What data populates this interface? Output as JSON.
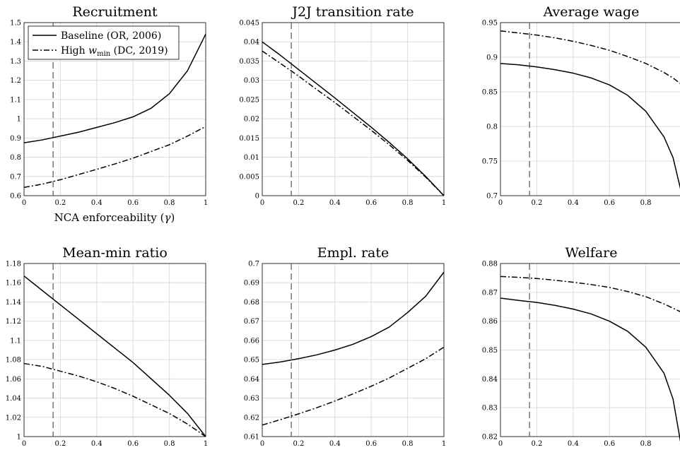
{
  "legend": {
    "baseline": "Baseline (OR, 2006)",
    "high_prefix": "High ",
    "high_w": "w",
    "high_sub": "min",
    "high_suffix": " (DC, 2019)"
  },
  "xlabel_text": "NCA enforceability (",
  "xlabel_symbol": "γ",
  "xlabel_close": ")",
  "colors": {
    "line": "#000000",
    "grid": "#dcdcdc",
    "reference": "#555555"
  },
  "chart_data": [
    {
      "type": "line",
      "title": "Recruitment",
      "xlim": [
        0,
        1
      ],
      "ylim": [
        0.6,
        1.5
      ],
      "xticks": [
        "0",
        "0.2",
        "0.4",
        "0.6",
        "0.8",
        "1"
      ],
      "yticks": [
        "0.6",
        "0.7",
        "0.8",
        "0.9",
        "1",
        "1.1",
        "1.2",
        "1.3",
        "1.4",
        "1.5"
      ],
      "reference_x": 0.16,
      "x": [
        0,
        0.1,
        0.2,
        0.3,
        0.4,
        0.5,
        0.6,
        0.7,
        0.8,
        0.9,
        1
      ],
      "series": [
        {
          "name": "Baseline (OR, 2006)",
          "style": "solid",
          "values": [
            0.875,
            0.89,
            0.91,
            0.93,
            0.955,
            0.98,
            1.01,
            1.055,
            1.13,
            1.25,
            1.44
          ]
        },
        {
          "name": "High w_min (DC, 2019)",
          "style": "dashdot",
          "values": [
            0.643,
            0.66,
            0.683,
            0.71,
            0.737,
            0.765,
            0.795,
            0.83,
            0.865,
            0.91,
            0.96
          ]
        }
      ]
    },
    {
      "type": "line",
      "title": "J2J transition rate",
      "xlim": [
        0,
        1
      ],
      "ylim": [
        0,
        0.045
      ],
      "xticks": [
        "0",
        "0.2",
        "0.4",
        "0.6",
        "0.8",
        "1"
      ],
      "yticks": [
        "0",
        "0.005",
        "0.01",
        "0.015",
        "0.02",
        "0.025",
        "0.03",
        "0.035",
        "0.04",
        "0.045"
      ],
      "reference_x": 0.16,
      "x": [
        0,
        0.1,
        0.2,
        0.3,
        0.4,
        0.5,
        0.6,
        0.7,
        0.8,
        0.9,
        1
      ],
      "series": [
        {
          "name": "Baseline (OR, 2006)",
          "style": "solid",
          "values": [
            0.04,
            0.0365,
            0.0328,
            0.0291,
            0.0254,
            0.0216,
            0.0178,
            0.0138,
            0.0096,
            0.005,
            0.0
          ]
        },
        {
          "name": "High w_min (DC, 2019)",
          "style": "dashdot",
          "values": [
            0.0376,
            0.0344,
            0.0311,
            0.0276,
            0.0242,
            0.0206,
            0.017,
            0.0132,
            0.0092,
            0.0048,
            0.0
          ]
        }
      ]
    },
    {
      "type": "line",
      "title": "Average wage",
      "xlim": [
        0,
        1
      ],
      "ylim": [
        0.7,
        0.95
      ],
      "xticks": [
        "0",
        "0.2",
        "0.4",
        "0.6",
        "0.8"
      ],
      "yticks": [
        "0.7",
        "0.75",
        "0.8",
        "0.85",
        "0.9",
        "0.95"
      ],
      "reference_x": 0.16,
      "x": [
        0,
        0.1,
        0.2,
        0.3,
        0.4,
        0.5,
        0.6,
        0.7,
        0.8,
        0.9,
        0.95,
        1
      ],
      "series": [
        {
          "name": "Baseline (OR, 2006)",
          "style": "solid",
          "values": [
            0.891,
            0.889,
            0.886,
            0.882,
            0.877,
            0.87,
            0.86,
            0.845,
            0.822,
            0.785,
            0.755,
            0.7
          ]
        },
        {
          "name": "High w_min (DC, 2019)",
          "style": "dashdot",
          "values": [
            0.938,
            0.935,
            0.932,
            0.928,
            0.923,
            0.917,
            0.91,
            0.901,
            0.891,
            0.878,
            0.87,
            0.86
          ]
        }
      ]
    },
    {
      "type": "line",
      "title": "Mean-min ratio",
      "xlim": [
        0,
        1
      ],
      "ylim": [
        1,
        1.18
      ],
      "xticks": [
        "0",
        "0.2",
        "0.4",
        "0.6",
        "0.8",
        "1"
      ],
      "yticks": [
        "1",
        "1.02",
        "1.04",
        "1.06",
        "1.08",
        "1.1",
        "1.12",
        "1.14",
        "1.16",
        "1.18"
      ],
      "reference_x": 0.16,
      "x": [
        0,
        0.1,
        0.2,
        0.3,
        0.4,
        0.5,
        0.6,
        0.7,
        0.8,
        0.9,
        1
      ],
      "series": [
        {
          "name": "Baseline (OR, 2006)",
          "style": "solid",
          "values": [
            1.167,
            1.152,
            1.137,
            1.122,
            1.107,
            1.092,
            1.077,
            1.06,
            1.043,
            1.024,
            1.0
          ]
        },
        {
          "name": "High w_min (DC, 2019)",
          "style": "dashdot",
          "values": [
            1.076,
            1.073,
            1.068,
            1.063,
            1.057,
            1.05,
            1.042,
            1.033,
            1.024,
            1.013,
            1.0
          ]
        }
      ]
    },
    {
      "type": "line",
      "title": "Empl. rate",
      "xlim": [
        0,
        1
      ],
      "ylim": [
        0.61,
        0.7
      ],
      "xticks": [
        "0",
        "0.2",
        "0.4",
        "0.6",
        "0.8",
        "1"
      ],
      "yticks": [
        "0.61",
        "0.62",
        "0.63",
        "0.64",
        "0.65",
        "0.66",
        "0.67",
        "0.68",
        "0.69",
        "0.7"
      ],
      "reference_x": 0.16,
      "x": [
        0,
        0.1,
        0.2,
        0.3,
        0.4,
        0.5,
        0.6,
        0.7,
        0.8,
        0.9,
        1
      ],
      "series": [
        {
          "name": "Baseline (OR, 2006)",
          "style": "solid",
          "values": [
            0.6475,
            0.6488,
            0.6505,
            0.6525,
            0.655,
            0.658,
            0.662,
            0.667,
            0.6745,
            0.683,
            0.6955
          ]
        },
        {
          "name": "High w_min (DC, 2019)",
          "style": "dashdot",
          "values": [
            0.616,
            0.6188,
            0.6218,
            0.625,
            0.6285,
            0.6322,
            0.6362,
            0.6405,
            0.6455,
            0.6505,
            0.6565
          ]
        }
      ]
    },
    {
      "type": "line",
      "title": "Welfare",
      "xlim": [
        0,
        1
      ],
      "ylim": [
        0.82,
        0.88
      ],
      "xticks": [
        "0",
        "0.2",
        "0.4",
        "0.6",
        "0.8"
      ],
      "yticks": [
        "0.82",
        "0.83",
        "0.84",
        "0.85",
        "0.86",
        "0.87",
        "0.88"
      ],
      "reference_x": 0.16,
      "x": [
        0,
        0.1,
        0.2,
        0.3,
        0.4,
        0.5,
        0.6,
        0.7,
        0.8,
        0.9,
        0.95,
        1
      ],
      "series": [
        {
          "name": "Baseline (OR, 2006)",
          "style": "solid",
          "values": [
            0.868,
            0.8672,
            0.8665,
            0.8655,
            0.8642,
            0.8625,
            0.86,
            0.8565,
            0.851,
            0.842,
            0.833,
            0.815
          ]
        },
        {
          "name": "High w_min (DC, 2019)",
          "style": "dashdot",
          "values": [
            0.8755,
            0.8752,
            0.8748,
            0.8742,
            0.8735,
            0.8727,
            0.8717,
            0.8703,
            0.8685,
            0.866,
            0.8645,
            0.863
          ]
        }
      ]
    }
  ]
}
